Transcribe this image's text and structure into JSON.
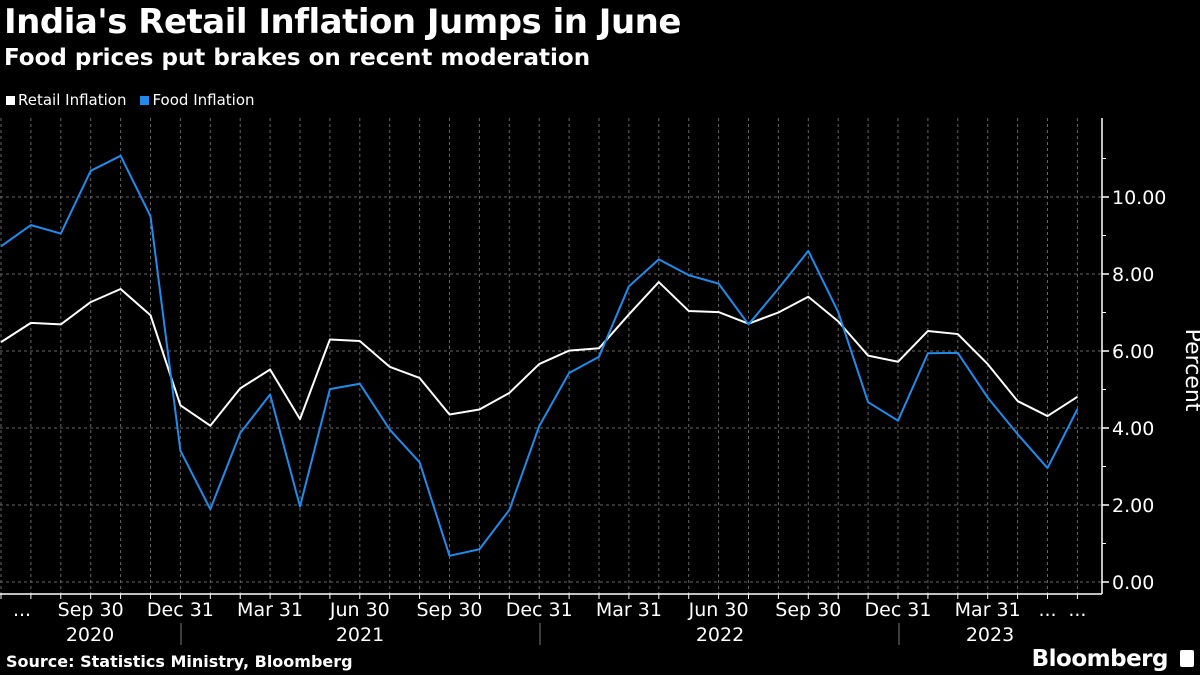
{
  "title": "India's Retail Inflation Jumps in June",
  "subtitle": "Food prices put brakes on recent moderation",
  "source": "Source: Statistics Ministry, Bloomberg",
  "logo": "Bloomberg",
  "chart_data": {
    "type": "line",
    "ylabel": "Percent",
    "ylim": [
      0,
      11.5
    ],
    "yticks": [
      "0.00",
      "2.00",
      "4.00",
      "6.00",
      "8.00",
      "10.00"
    ],
    "grid": true,
    "legend_position": "top-left",
    "x": [
      "2020-06",
      "2020-07",
      "2020-08",
      "2020-09",
      "2020-10",
      "2020-11",
      "2020-12",
      "2021-01",
      "2021-02",
      "2021-03",
      "2021-04",
      "2021-05",
      "2021-06",
      "2021-07",
      "2021-08",
      "2021-09",
      "2021-10",
      "2021-11",
      "2021-12",
      "2022-01",
      "2022-02",
      "2022-03",
      "2022-04",
      "2022-05",
      "2022-06",
      "2022-07",
      "2022-08",
      "2022-09",
      "2022-10",
      "2022-11",
      "2022-12",
      "2023-01",
      "2023-02",
      "2023-03",
      "2023-04",
      "2023-05",
      "2023-06"
    ],
    "xtick_labels": [
      "...",
      "Sep 30",
      "Dec 31",
      "Mar 31",
      "Jun 30",
      "Sep 30",
      "Dec 31",
      "Mar 31",
      "Jun 30",
      "Sep 30",
      "Dec 31",
      "Mar 31",
      "...",
      "..."
    ],
    "year_labels": [
      "2020",
      "2021",
      "2022",
      "2023"
    ],
    "series": [
      {
        "name": "Retail Inflation",
        "color": "#ffffff",
        "values": [
          6.23,
          6.73,
          6.69,
          7.27,
          7.61,
          6.93,
          4.59,
          4.06,
          5.03,
          5.52,
          4.23,
          6.3,
          6.26,
          5.59,
          5.3,
          4.35,
          4.48,
          4.91,
          5.66,
          6.01,
          6.07,
          6.95,
          7.79,
          7.04,
          7.01,
          6.71,
          7.0,
          7.41,
          6.77,
          5.88,
          5.72,
          6.52,
          6.44,
          5.66,
          4.7,
          4.31,
          4.81
        ]
      },
      {
        "name": "Food Inflation",
        "color": "#1f8ceb",
        "values": [
          8.72,
          9.27,
          9.05,
          10.68,
          11.07,
          9.5,
          3.41,
          1.89,
          3.87,
          4.87,
          1.96,
          5.01,
          5.15,
          3.96,
          3.11,
          0.68,
          0.85,
          1.87,
          4.05,
          5.43,
          5.85,
          7.68,
          8.38,
          7.97,
          7.75,
          6.69,
          7.62,
          8.6,
          7.01,
          4.67,
          4.19,
          5.94,
          5.95,
          4.79,
          3.84,
          2.96,
          4.49
        ]
      }
    ]
  }
}
